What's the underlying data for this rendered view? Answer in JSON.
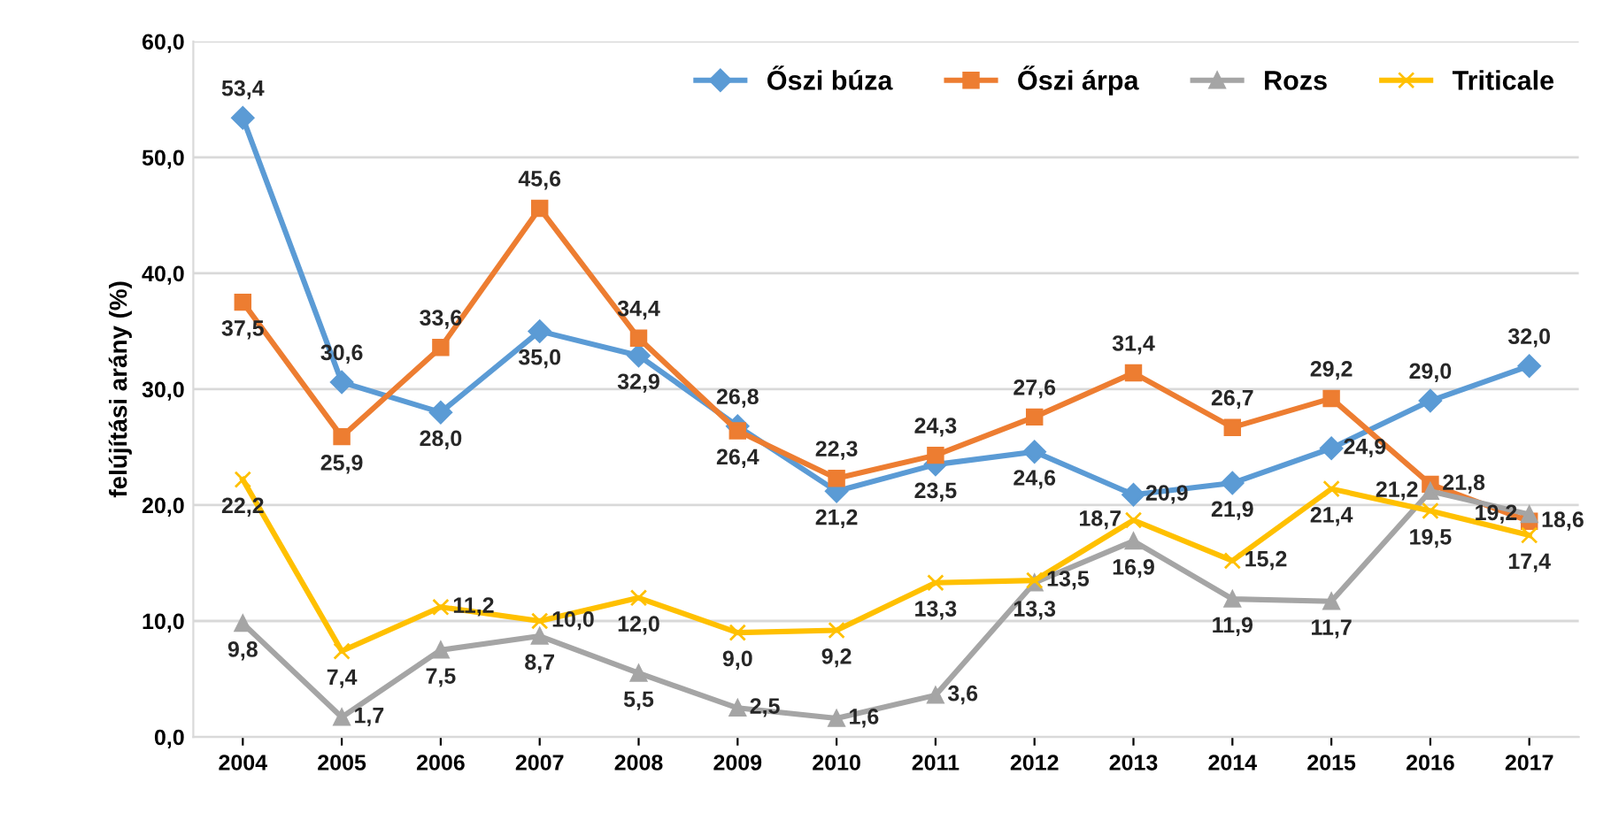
{
  "chart_data": {
    "type": "line",
    "ylabel": "felújítási arány (%)",
    "categories": [
      "2004",
      "2005",
      "2006",
      "2007",
      "2008",
      "2009",
      "2010",
      "2011",
      "2012",
      "2013",
      "2014",
      "2015",
      "2016",
      "2017"
    ],
    "series": [
      {
        "name": "Őszi búza",
        "color": "#5b9bd5",
        "marker": "diamond",
        "values": [
          53.4,
          30.6,
          28.0,
          35.0,
          32.9,
          26.8,
          21.2,
          23.5,
          24.6,
          20.9,
          21.9,
          24.9,
          29.0,
          32.0
        ],
        "value_labels": [
          "53,4",
          "30,6",
          "28,0",
          "35,0",
          "32,9",
          "26,8",
          "21,2",
          "23,5",
          "24,6",
          "20,9",
          "21,9",
          "24,9",
          "29,0",
          "32,0"
        ]
      },
      {
        "name": "Őszi árpa",
        "color": "#ed7d31",
        "marker": "square",
        "values": [
          37.5,
          25.9,
          33.6,
          45.6,
          34.4,
          26.4,
          22.3,
          24.3,
          27.6,
          31.4,
          26.7,
          29.2,
          21.8,
          18.6
        ],
        "value_labels": [
          "37,5",
          "25,9",
          "33,6",
          "45,6",
          "34,4",
          "26,4",
          "22,3",
          "24,3",
          "27,6",
          "31,4",
          "26,7",
          "29,2",
          "21,8",
          "18,6"
        ]
      },
      {
        "name": "Rozs",
        "color": "#a5a5a5",
        "marker": "triangle",
        "values": [
          9.8,
          1.7,
          7.5,
          8.7,
          5.5,
          2.5,
          1.6,
          3.6,
          13.3,
          16.9,
          11.9,
          11.7,
          21.2,
          19.2
        ],
        "value_labels": [
          "9,8",
          "1,7",
          "7,5",
          "8,7",
          "5,5",
          "2,5",
          "1,6",
          "3,6",
          "13,3",
          "16,9",
          "11,9",
          "11,7",
          "21,2",
          "19,2"
        ]
      },
      {
        "name": "Triticale",
        "color": "#ffc000",
        "marker": "cross",
        "values": [
          22.2,
          7.4,
          11.2,
          10.0,
          12.0,
          9.0,
          9.2,
          13.3,
          13.5,
          18.7,
          15.2,
          21.4,
          19.5,
          17.4
        ],
        "value_labels": [
          "22,2",
          "7,4",
          "11,2",
          "10,0",
          "12,0",
          "9,0",
          "9,2",
          "13,3",
          "13,5",
          "18,7",
          "15,2",
          "21,4",
          "19,5",
          "17,4"
        ]
      }
    ],
    "ylim": [
      0,
      60
    ],
    "yticks": [
      {
        "value": 0,
        "label": "0,0"
      },
      {
        "value": 10,
        "label": "10,0"
      },
      {
        "value": 20,
        "label": "20,0"
      },
      {
        "value": 30,
        "label": "30,0"
      },
      {
        "value": 40,
        "label": "40,0"
      },
      {
        "value": 50,
        "label": "50,0"
      },
      {
        "value": 60,
        "label": "60,0"
      }
    ],
    "grid": "y",
    "legend": "top right",
    "line_style": "solid"
  }
}
